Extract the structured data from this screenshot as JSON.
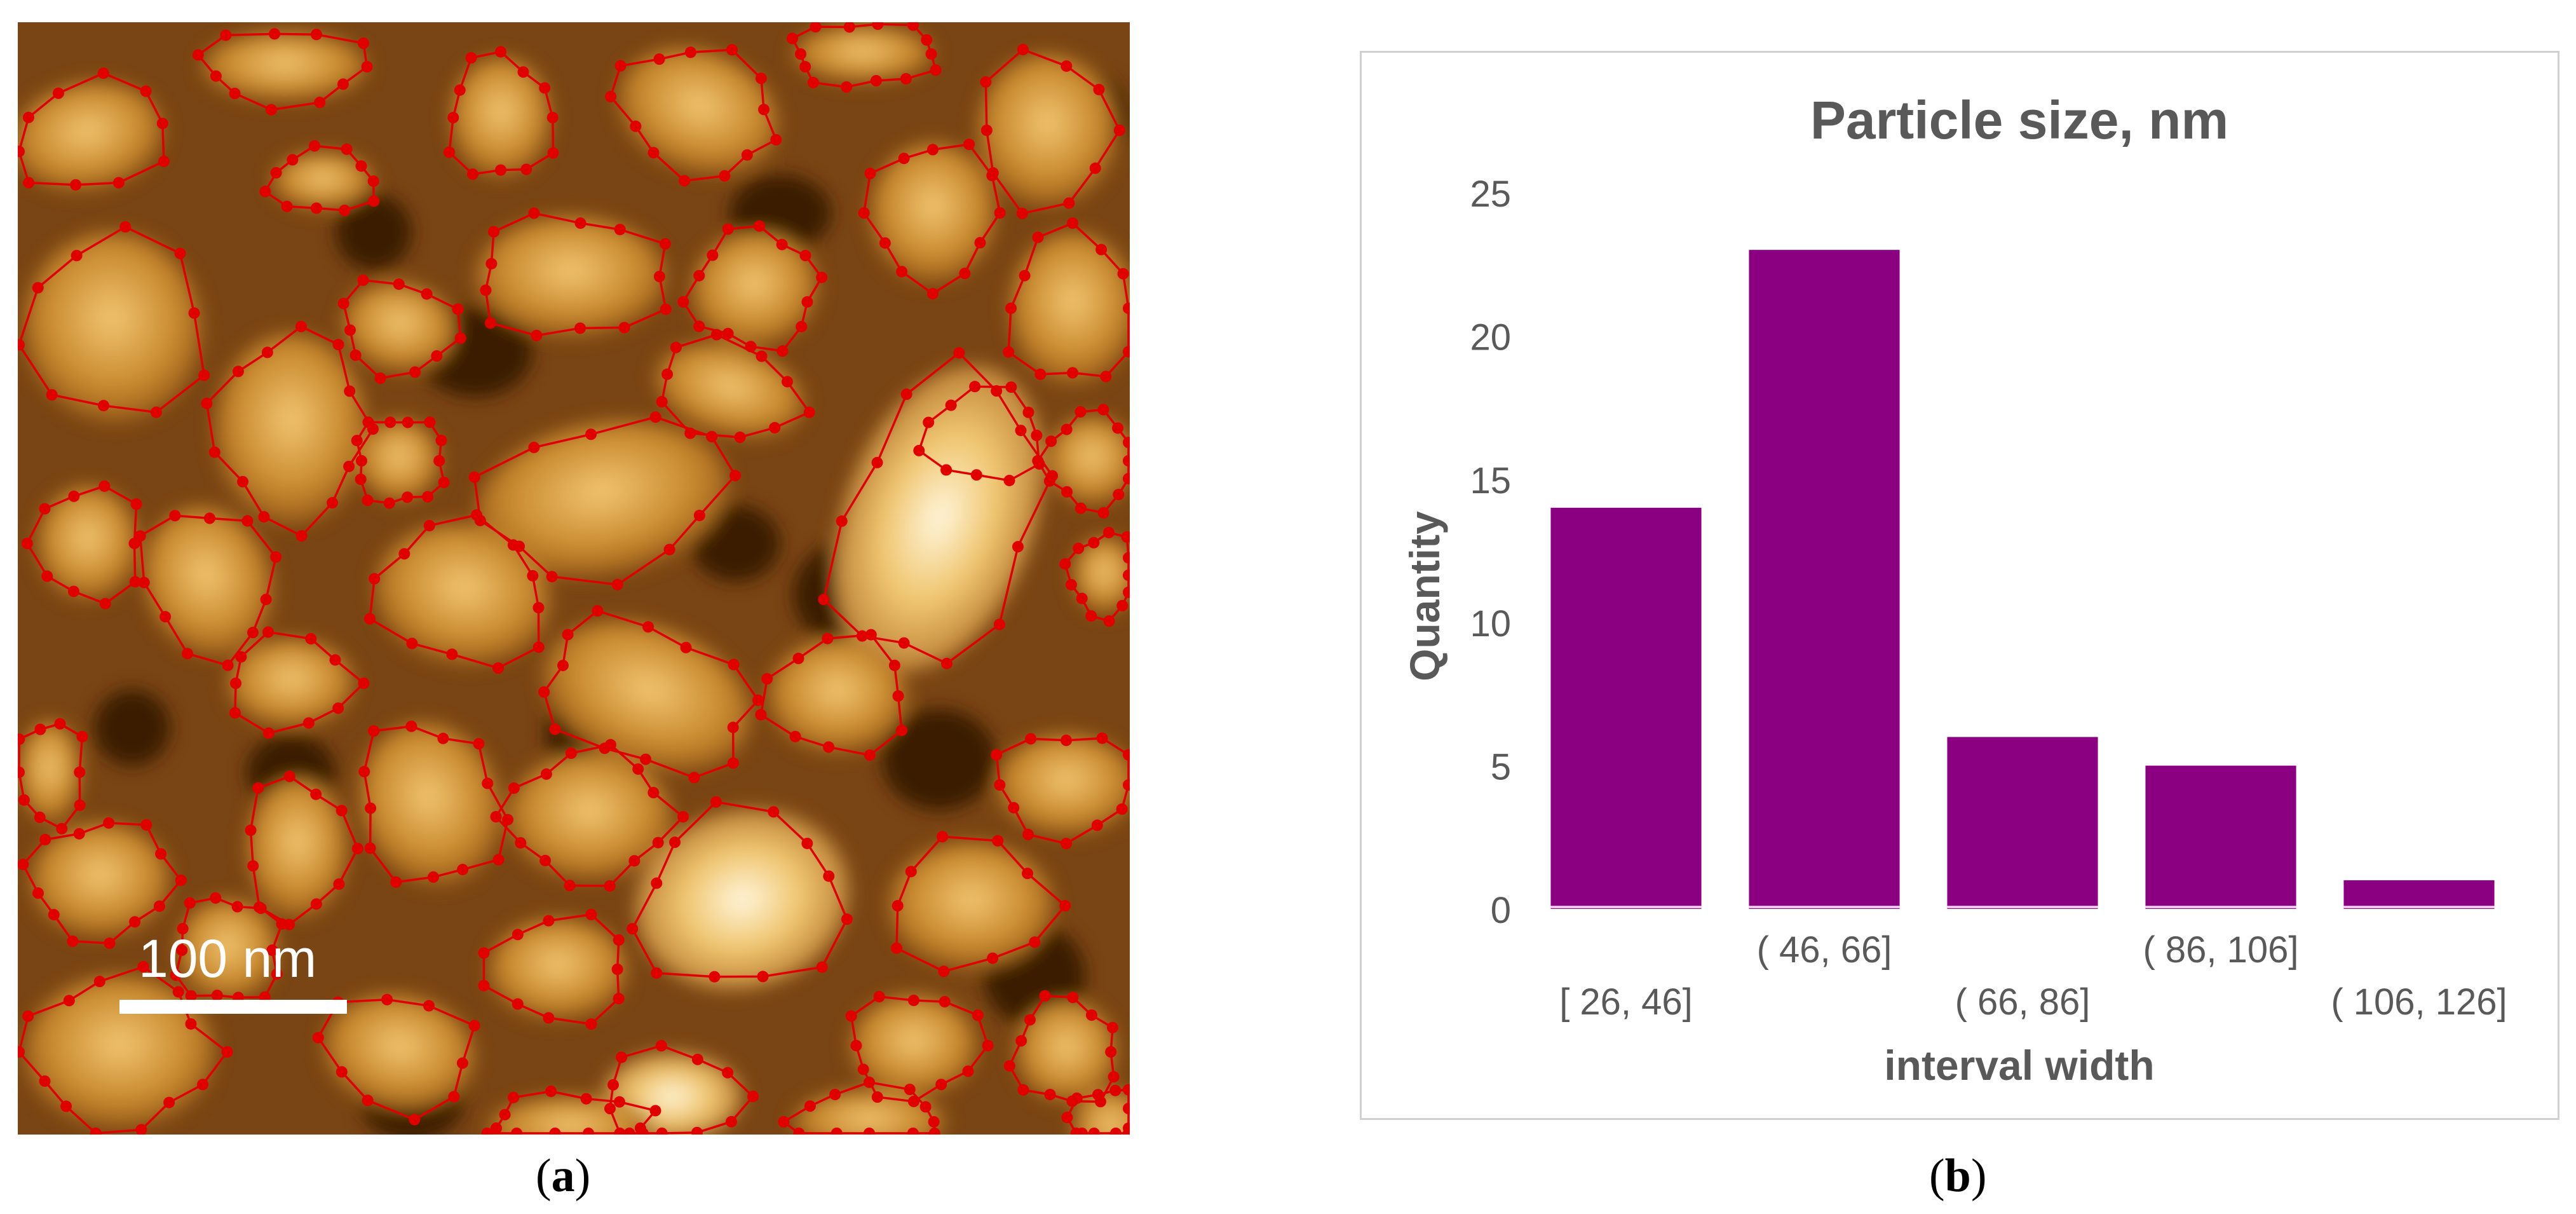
{
  "panel_a": {
    "scale_bar_label": "100 nm",
    "caption_letter": "a",
    "colors": {
      "particle_outline": "#e00000",
      "dark_background": "#3a1a05",
      "bright_particle": "#fff0c8"
    }
  },
  "panel_b": {
    "caption_letter": "b",
    "colors": {
      "bar": "#8a0080",
      "axis": "#d9d9d9",
      "text": "#595959"
    }
  },
  "chart_data": {
    "type": "bar",
    "title": "Particle size, nm",
    "xlabel": "interval width",
    "ylabel": "Quantity",
    "categories": [
      "[ 26,  46]",
      "( 46,  66]",
      "( 66,  86]",
      "( 86,  106]",
      "( 106,  126]"
    ],
    "values": [
      14,
      23,
      6,
      5,
      1
    ],
    "ylim": [
      0,
      25
    ],
    "yticks": [
      0,
      5,
      10,
      15,
      20,
      25
    ],
    "grid": false,
    "legend": "none"
  }
}
